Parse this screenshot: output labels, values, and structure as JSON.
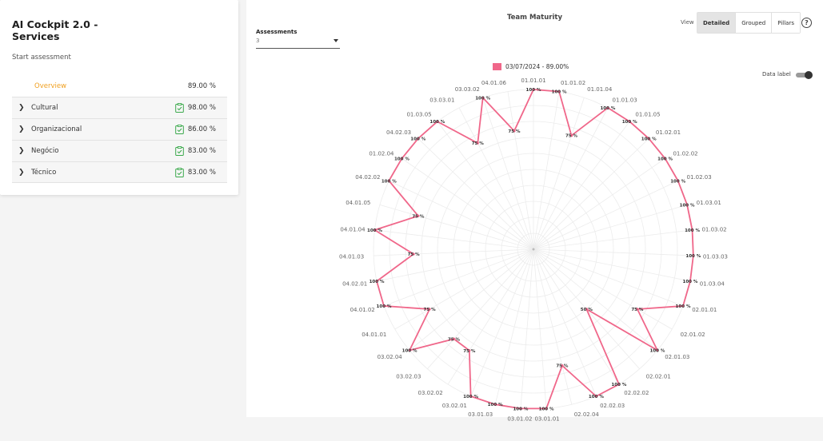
{
  "sidebar": {
    "title": "AI Cockpit 2.0 - Services",
    "start_assessment": "Start assessment",
    "overview": {
      "label": "Overview",
      "value": "89.00 %"
    },
    "pillars": [
      {
        "label": "Cultural",
        "value": "98.00 %"
      },
      {
        "label": "Organizacional",
        "value": "86.00 %"
      },
      {
        "label": "Negócio",
        "value": "83.00 %"
      },
      {
        "label": "Técnico",
        "value": "83.00 %"
      }
    ]
  },
  "header": {
    "chart_title": "Team Maturity",
    "assessments_label": "Assessments",
    "assessments_value": "3",
    "view_label": "View",
    "view_buttons": [
      "Detailed",
      "Grouped",
      "Pillars"
    ],
    "active_view": "Detailed",
    "help_glyph": "?",
    "data_label": "Data label",
    "data_label_on": true
  },
  "colors": {
    "series": "#f0678a",
    "overview": "#f0a020",
    "clipboard": "#3aa84b"
  },
  "chart_data": {
    "type": "radar",
    "rlim": [
      0,
      100
    ],
    "grid": true,
    "data_labels": true,
    "legend_position": "top",
    "categories": [
      "01.01.01",
      "01.01.02",
      "01.01.04",
      "01.01.03",
      "01.01.05",
      "01.02.01",
      "01.02.02",
      "01.02.03",
      "01.03.01",
      "01.03.02",
      "01.03.03",
      "01.03.04",
      "02.01.01",
      "02.01.02",
      "02.01.03",
      "02.02.01",
      "02.02.02",
      "02.02.03",
      "02.02.04",
      "03.01.01",
      "03.01.02",
      "03.01.03",
      "03.02.01",
      "03.02.02",
      "03.02.03",
      "03.02.04",
      "04.01.01",
      "04.01.02",
      "04.02.01",
      "04.01.03",
      "04.01.04",
      "04.01.05",
      "04.02.02",
      "01.02.04",
      "04.02.03",
      "01.03.05",
      "03.03.01",
      "03.03.02",
      "04.01.06"
    ],
    "series": [
      {
        "name": "03/07/2024 - 89.00%",
        "values": [
          100,
          100,
          75,
          100,
          100,
          100,
          100,
          100,
          100,
          100,
          100,
          100,
          100,
          75,
          100,
          50,
          100,
          100,
          75,
          100,
          100,
          100,
          100,
          75,
          75,
          100,
          75,
          100,
          100,
          75,
          100,
          75,
          100,
          100,
          100,
          100,
          75,
          100,
          75
        ]
      }
    ],
    "value_labels": [
      "100 %",
      "100 %",
      "75 %",
      "100 %",
      "100 %",
      "100 %",
      "100 %",
      "100 %",
      "100 %",
      "100 %",
      "100 %",
      "100 %",
      "100 %",
      "75 %",
      "100 %",
      "50 %",
      "100 %",
      "100 %",
      "75 %",
      "100 %",
      "100 %",
      "100 %",
      "100 %",
      "75 %",
      "75 %",
      "100 %",
      "75 %",
      "100 %",
      "100 %",
      "75 %",
      "100 %",
      "75 %",
      "100 %",
      "100 %",
      "100 %",
      "100 %",
      "75 %",
      "100 %",
      "75 %"
    ]
  }
}
